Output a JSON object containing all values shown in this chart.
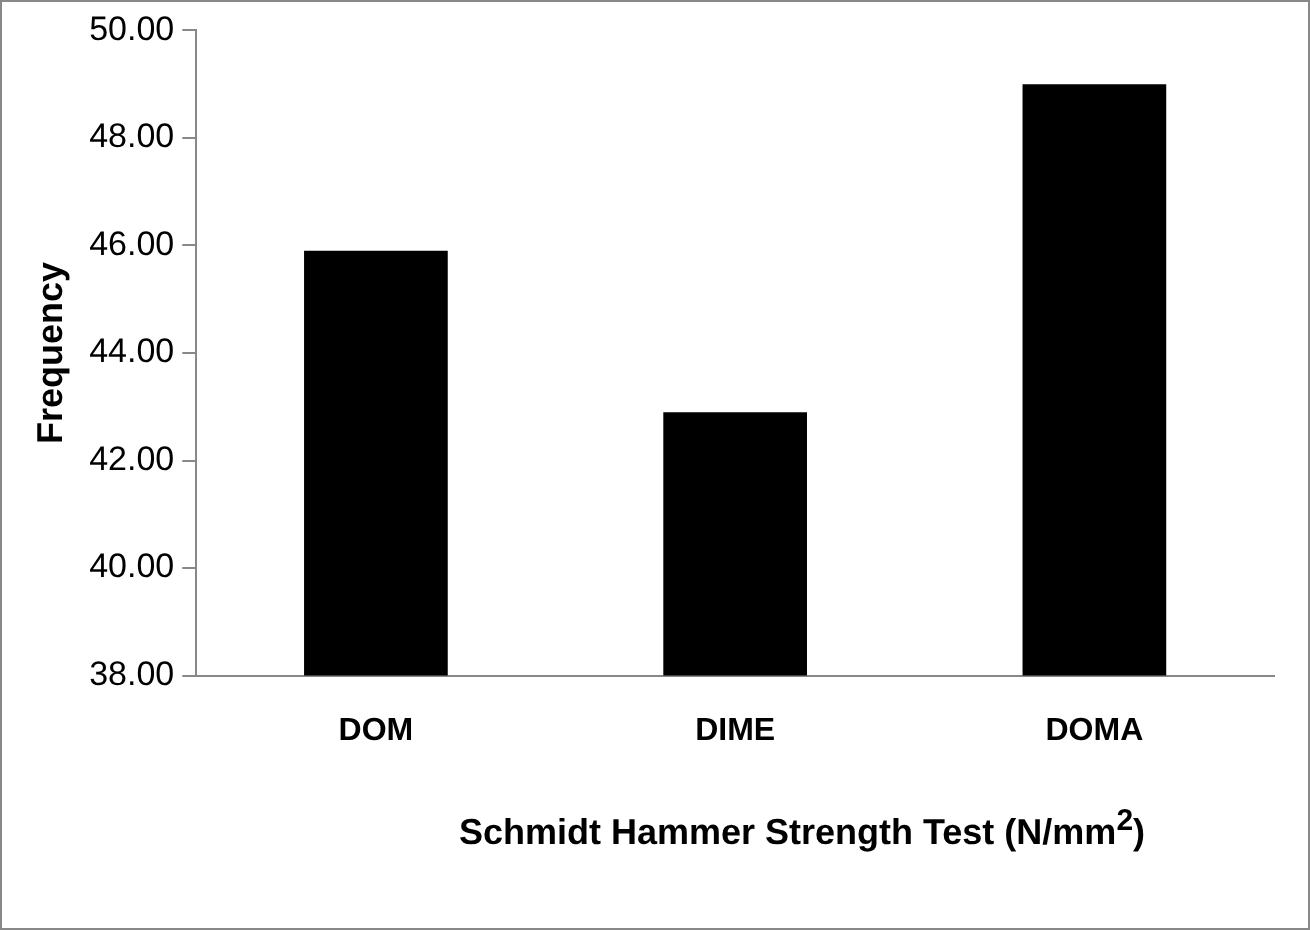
{
  "chart_data": {
    "type": "bar",
    "xlabel": "Schmidt Hammer Strength Test (N/mm$^{2}$)",
    "ylabel": "Frequency",
    "categories": [
      "DOM",
      "DIME",
      "DOMA"
    ],
    "values": [
      45.9,
      42.9,
      49.0
    ],
    "color": "#000000",
    "ylim": [
      38,
      50
    ],
    "yticks": [
      {
        "value": 38,
        "label": "38.00"
      },
      {
        "value": 40,
        "label": "40.00"
      },
      {
        "value": 42,
        "label": "42.00"
      },
      {
        "value": 44,
        "label": "44.00"
      },
      {
        "value": 46,
        "label": "46.00"
      },
      {
        "value": 48,
        "label": "48.00"
      },
      {
        "value": 50,
        "label": "50.00"
      }
    ],
    "grid": false,
    "legend": false
  }
}
